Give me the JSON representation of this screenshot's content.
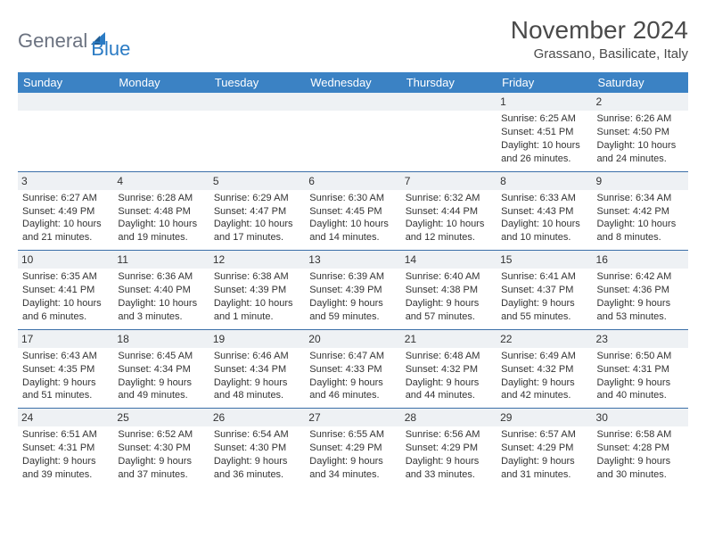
{
  "logo": {
    "word1": "General",
    "word2": "Blue"
  },
  "title": "November 2024",
  "location": "Grassano, Basilicate, Italy",
  "colors": {
    "header_bg": "#3b82c4",
    "header_text": "#ffffff",
    "daynum_bg": "#eef1f4",
    "row_border": "#3b6fa8",
    "body_text": "#333333",
    "title_text": "#4a4a4a",
    "logo_gray": "#6b7280",
    "logo_blue": "#2b7bc4"
  },
  "typography": {
    "title_fontsize": 28,
    "location_fontsize": 15,
    "dayheader_fontsize": 13,
    "daynum_fontsize": 12,
    "body_fontsize": 11
  },
  "day_headers": [
    "Sunday",
    "Monday",
    "Tuesday",
    "Wednesday",
    "Thursday",
    "Friday",
    "Saturday"
  ],
  "labels": {
    "sunrise": "Sunrise:",
    "sunset": "Sunset:",
    "daylight": "Daylight:"
  },
  "weeks": [
    [
      null,
      null,
      null,
      null,
      null,
      {
        "n": "1",
        "sr": "6:25 AM",
        "ss": "4:51 PM",
        "dl": "10 hours and 26 minutes."
      },
      {
        "n": "2",
        "sr": "6:26 AM",
        "ss": "4:50 PM",
        "dl": "10 hours and 24 minutes."
      }
    ],
    [
      {
        "n": "3",
        "sr": "6:27 AM",
        "ss": "4:49 PM",
        "dl": "10 hours and 21 minutes."
      },
      {
        "n": "4",
        "sr": "6:28 AM",
        "ss": "4:48 PM",
        "dl": "10 hours and 19 minutes."
      },
      {
        "n": "5",
        "sr": "6:29 AM",
        "ss": "4:47 PM",
        "dl": "10 hours and 17 minutes."
      },
      {
        "n": "6",
        "sr": "6:30 AM",
        "ss": "4:45 PM",
        "dl": "10 hours and 14 minutes."
      },
      {
        "n": "7",
        "sr": "6:32 AM",
        "ss": "4:44 PM",
        "dl": "10 hours and 12 minutes."
      },
      {
        "n": "8",
        "sr": "6:33 AM",
        "ss": "4:43 PM",
        "dl": "10 hours and 10 minutes."
      },
      {
        "n": "9",
        "sr": "6:34 AM",
        "ss": "4:42 PM",
        "dl": "10 hours and 8 minutes."
      }
    ],
    [
      {
        "n": "10",
        "sr": "6:35 AM",
        "ss": "4:41 PM",
        "dl": "10 hours and 6 minutes."
      },
      {
        "n": "11",
        "sr": "6:36 AM",
        "ss": "4:40 PM",
        "dl": "10 hours and 3 minutes."
      },
      {
        "n": "12",
        "sr": "6:38 AM",
        "ss": "4:39 PM",
        "dl": "10 hours and 1 minute."
      },
      {
        "n": "13",
        "sr": "6:39 AM",
        "ss": "4:39 PM",
        "dl": "9 hours and 59 minutes."
      },
      {
        "n": "14",
        "sr": "6:40 AM",
        "ss": "4:38 PM",
        "dl": "9 hours and 57 minutes."
      },
      {
        "n": "15",
        "sr": "6:41 AM",
        "ss": "4:37 PM",
        "dl": "9 hours and 55 minutes."
      },
      {
        "n": "16",
        "sr": "6:42 AM",
        "ss": "4:36 PM",
        "dl": "9 hours and 53 minutes."
      }
    ],
    [
      {
        "n": "17",
        "sr": "6:43 AM",
        "ss": "4:35 PM",
        "dl": "9 hours and 51 minutes."
      },
      {
        "n": "18",
        "sr": "6:45 AM",
        "ss": "4:34 PM",
        "dl": "9 hours and 49 minutes."
      },
      {
        "n": "19",
        "sr": "6:46 AM",
        "ss": "4:34 PM",
        "dl": "9 hours and 48 minutes."
      },
      {
        "n": "20",
        "sr": "6:47 AM",
        "ss": "4:33 PM",
        "dl": "9 hours and 46 minutes."
      },
      {
        "n": "21",
        "sr": "6:48 AM",
        "ss": "4:32 PM",
        "dl": "9 hours and 44 minutes."
      },
      {
        "n": "22",
        "sr": "6:49 AM",
        "ss": "4:32 PM",
        "dl": "9 hours and 42 minutes."
      },
      {
        "n": "23",
        "sr": "6:50 AM",
        "ss": "4:31 PM",
        "dl": "9 hours and 40 minutes."
      }
    ],
    [
      {
        "n": "24",
        "sr": "6:51 AM",
        "ss": "4:31 PM",
        "dl": "9 hours and 39 minutes."
      },
      {
        "n": "25",
        "sr": "6:52 AM",
        "ss": "4:30 PM",
        "dl": "9 hours and 37 minutes."
      },
      {
        "n": "26",
        "sr": "6:54 AM",
        "ss": "4:30 PM",
        "dl": "9 hours and 36 minutes."
      },
      {
        "n": "27",
        "sr": "6:55 AM",
        "ss": "4:29 PM",
        "dl": "9 hours and 34 minutes."
      },
      {
        "n": "28",
        "sr": "6:56 AM",
        "ss": "4:29 PM",
        "dl": "9 hours and 33 minutes."
      },
      {
        "n": "29",
        "sr": "6:57 AM",
        "ss": "4:29 PM",
        "dl": "9 hours and 31 minutes."
      },
      {
        "n": "30",
        "sr": "6:58 AM",
        "ss": "4:28 PM",
        "dl": "9 hours and 30 minutes."
      }
    ]
  ]
}
